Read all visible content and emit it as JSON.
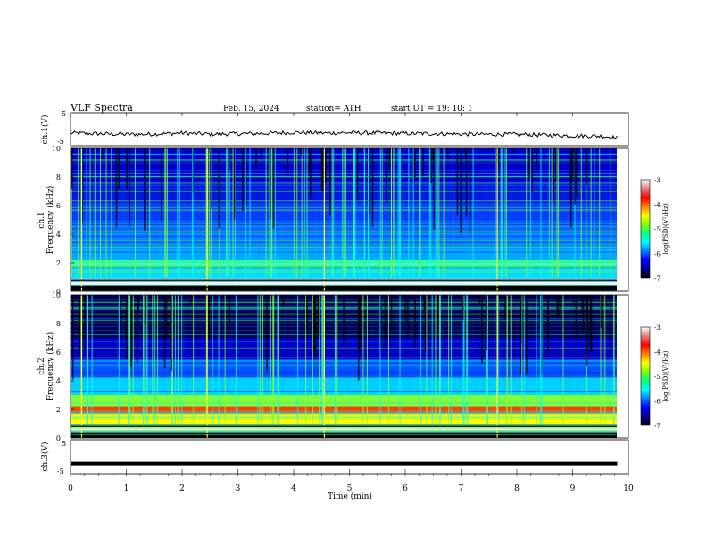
{
  "header": {
    "title": "VLF  Spectra",
    "date": "Feb. 15, 2024",
    "station": "station= ATH",
    "start": "start  UT  =    19: 10: 1"
  },
  "chart_data": [
    {
      "type": "line",
      "ylabel": "ch.1(V)",
      "ylim": [
        -5,
        5
      ],
      "yticks": [
        "5",
        "-5"
      ],
      "xlim": [
        0,
        10
      ],
      "x": [
        0,
        0.5,
        1,
        1.5,
        2,
        2.5,
        3,
        3.5,
        4,
        4.5,
        5,
        5.5,
        6,
        6.5,
        7,
        7.5,
        8,
        8.5,
        9,
        9.5,
        9.8
      ],
      "y": [
        -1.2,
        -1.4,
        -1.6,
        -1.5,
        -1.2,
        -1.5,
        -1.4,
        -1.3,
        -1.0,
        -1.2,
        -1.1,
        -1.2,
        -1.3,
        -1.4,
        -1.5,
        -1.6,
        -1.6,
        -1.8,
        -2.0,
        -2.1,
        -2.6
      ],
      "line_color": "#000000"
    },
    {
      "type": "heatmap",
      "ylabel_top": "ch.1",
      "ylabel": "Frequency  (kHz)",
      "ylim": [
        0,
        10
      ],
      "yticks": [
        "10",
        "8",
        "6",
        "4",
        "2",
        "0"
      ],
      "xlim": [
        0,
        10
      ],
      "colorbar": {
        "label": "log(PSD)(V²/Hz)",
        "ticks": [
          "-3",
          "-4",
          "-5",
          "-6",
          "-7"
        ]
      }
    },
    {
      "type": "heatmap",
      "ylabel_top": "ch.2",
      "ylabel": "Frequency  (kHz)",
      "ylim": [
        0,
        10
      ],
      "yticks": [
        "10",
        "8",
        "6",
        "4",
        "2",
        "0"
      ],
      "xlim": [
        0,
        10
      ],
      "colorbar": {
        "label": "log(PSD)(V²/Hz)",
        "ticks": [
          "-3",
          "-4",
          "-5",
          "-6",
          "-7"
        ]
      }
    },
    {
      "type": "line",
      "ylabel": "ch.3(V)",
      "ylim": [
        -5,
        5
      ],
      "yticks": [
        "5",
        "-5"
      ],
      "xlim": [
        0,
        10
      ],
      "x": [
        0,
        9.8
      ],
      "y": [
        -2.0,
        -2.0
      ],
      "line_color": "#000000"
    }
  ],
  "xaxis": {
    "label": "Time  (min)",
    "ticks": [
      "0",
      "1",
      "2",
      "3",
      "4",
      "5",
      "6",
      "7",
      "8",
      "9",
      "10"
    ]
  },
  "colormap": [
    "#000000",
    "#00008b",
    "#0000ff",
    "#0060ff",
    "#00c0ff",
    "#00ffff",
    "#40ff80",
    "#80ff00",
    "#ffff00",
    "#ff8000",
    "#ff0000",
    "#e07070",
    "#ffffff"
  ]
}
